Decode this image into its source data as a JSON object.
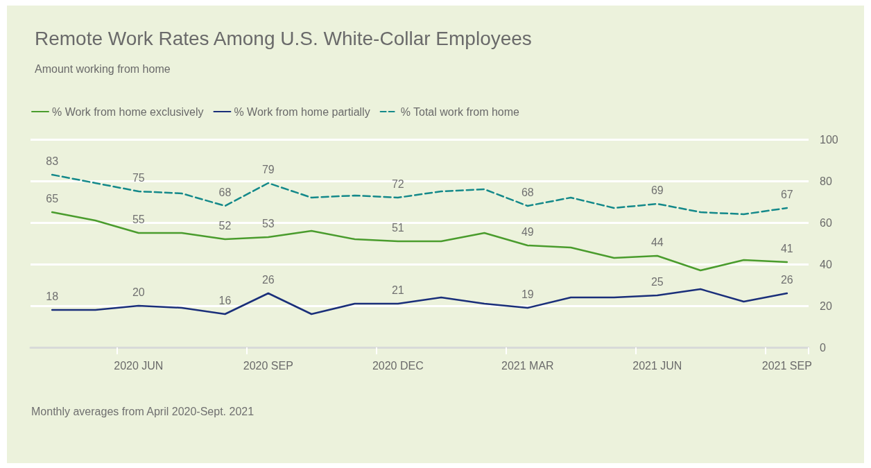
{
  "chart_data": {
    "type": "line",
    "title": "Remote Work Rates Among U.S. White-Collar Employees",
    "subtitle": "Amount working from home",
    "categories": [
      null,
      null,
      "2020 JUN",
      null,
      null,
      "2020 SEP",
      null,
      null,
      "2020 DEC",
      null,
      null,
      "2021 MAR",
      null,
      null,
      "2021 JUN",
      null,
      null,
      "2021 SEP"
    ],
    "series": [
      {
        "name": "% Work from home exclusively",
        "color": "#4a9c2d",
        "line_style": "solid",
        "values": [
          65,
          61,
          55,
          55,
          52,
          53,
          56,
          52,
          51,
          51,
          55,
          49,
          48,
          43,
          44,
          37,
          42,
          41
        ],
        "value_labels": [
          "65",
          null,
          "55",
          null,
          "52",
          "53",
          null,
          null,
          "51",
          null,
          null,
          "49",
          null,
          null,
          "44",
          null,
          null,
          "41"
        ]
      },
      {
        "name": "% Work from home partially",
        "color": "#1a2f7a",
        "line_style": "solid",
        "values": [
          18,
          18,
          20,
          19,
          16,
          26,
          16,
          21,
          21,
          24,
          21,
          19,
          24,
          24,
          25,
          28,
          22,
          26
        ],
        "value_labels": [
          "18",
          null,
          "20",
          null,
          "16",
          "26",
          null,
          null,
          "21",
          null,
          null,
          "19",
          null,
          null,
          "25",
          null,
          null,
          "26"
        ]
      },
      {
        "name": "% Total work from home",
        "color": "#14898a",
        "line_style": "dashed",
        "values": [
          83,
          79,
          75,
          74,
          68,
          79,
          72,
          73,
          72,
          75,
          76,
          68,
          72,
          67,
          69,
          65,
          64,
          67
        ],
        "value_labels": [
          "83",
          null,
          "75",
          null,
          "68",
          "79",
          null,
          null,
          "72",
          null,
          null,
          "68",
          null,
          null,
          "69",
          null,
          null,
          "67"
        ]
      }
    ],
    "ylim": [
      0,
      100
    ],
    "yticks": [
      0,
      20,
      40,
      60,
      80,
      100
    ],
    "grid": "y",
    "legend": "top left",
    "marker": "none",
    "annotations": [
      "Monthly averages from April 2020-Sept. 2021"
    ]
  }
}
